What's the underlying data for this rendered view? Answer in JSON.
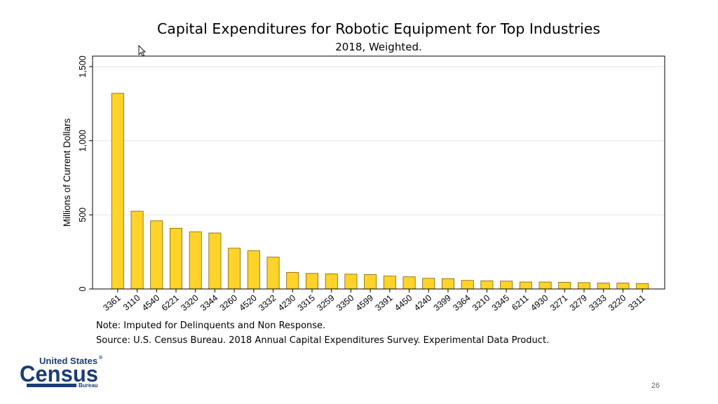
{
  "chart_data": {
    "type": "bar",
    "title": "Capital Expenditures for Robotic Equipment for Top Industries",
    "subtitle": "2018, Weighted.",
    "xlabel": "",
    "ylabel": "Millions of Current Dollars",
    "ylim": [
      0,
      1500
    ],
    "yticks": [
      0,
      500,
      1000,
      1500
    ],
    "ytick_labels": [
      "0",
      "500",
      "1,000",
      "1,500"
    ],
    "grid": true,
    "categories": [
      "3361",
      "3110",
      "4540",
      "6221",
      "3320",
      "3344",
      "3260",
      "4520",
      "3332",
      "4230",
      "3315",
      "3259",
      "3350",
      "4599",
      "3391",
      "4450",
      "4240",
      "3399",
      "3364",
      "3210",
      "3345",
      "6211",
      "4930",
      "3271",
      "3279",
      "3333",
      "3220",
      "3311"
    ],
    "values": [
      1320,
      525,
      460,
      410,
      385,
      378,
      275,
      258,
      215,
      112,
      105,
      102,
      100,
      97,
      87,
      82,
      72,
      70,
      58,
      55,
      53,
      47,
      47,
      45,
      43,
      40,
      40,
      37
    ],
    "bar_color": "#FFD32A"
  },
  "notes": {
    "note": "Note: Imputed for Delinquents and Non Response.",
    "source": "Source: U.S. Census Bureau. 2018 Annual Capital Expenditures Survey. Experimental Data Product."
  },
  "logo": {
    "line1": "United States",
    "reg": "®",
    "line2": "Census",
    "line3": "Bureau"
  },
  "page_number": "26",
  "icon": "mouse-cursor-icon"
}
